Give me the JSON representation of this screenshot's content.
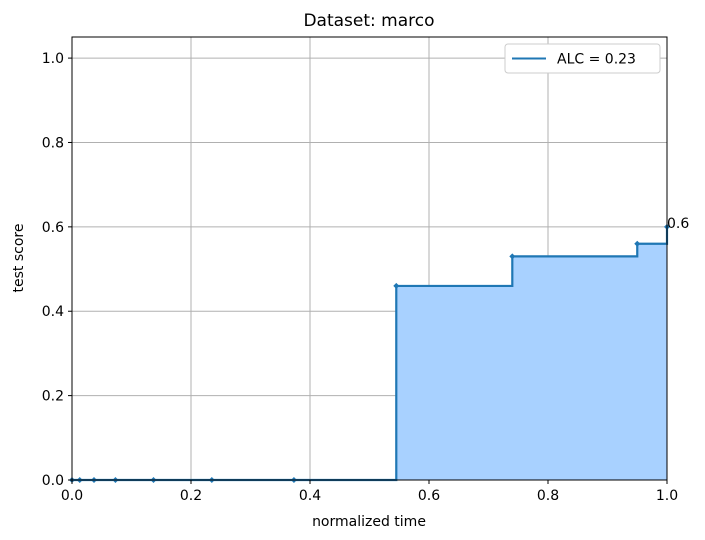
{
  "chart_data": {
    "type": "line",
    "title": "Dataset: marco",
    "xlabel": "normalized time",
    "ylabel": "test score",
    "xlim": [
      0.0,
      1.0
    ],
    "ylim": [
      0.0,
      1.05
    ],
    "xticks": [
      0.0,
      0.2,
      0.4,
      0.6,
      0.8,
      1.0
    ],
    "xtick_labels": [
      "0.0",
      "0.2",
      "0.4",
      "0.6",
      "0.8",
      "1.0"
    ],
    "yticks": [
      0.0,
      0.2,
      0.4,
      0.6,
      0.8,
      1.0
    ],
    "ytick_labels": [
      "0.0",
      "0.2",
      "0.4",
      "0.6",
      "0.8",
      "1.0"
    ],
    "grid": true,
    "legend_position": "top-right",
    "step": "post",
    "fill_under": true,
    "series": [
      {
        "name": "ALC = 0.23",
        "color": "#1f77b4",
        "fill_color": "#a8d1ff",
        "x": [
          0.0,
          0.013,
          0.037,
          0.073,
          0.137,
          0.235,
          0.373,
          0.545,
          0.74,
          0.95,
          1.0
        ],
        "y": [
          0.0,
          0.0,
          0.0,
          0.0,
          0.0,
          0.0,
          0.0,
          0.46,
          0.53,
          0.56,
          0.6
        ]
      }
    ],
    "annotations": [
      {
        "text": "0.6",
        "x": 1.0,
        "y": 0.6
      }
    ]
  }
}
